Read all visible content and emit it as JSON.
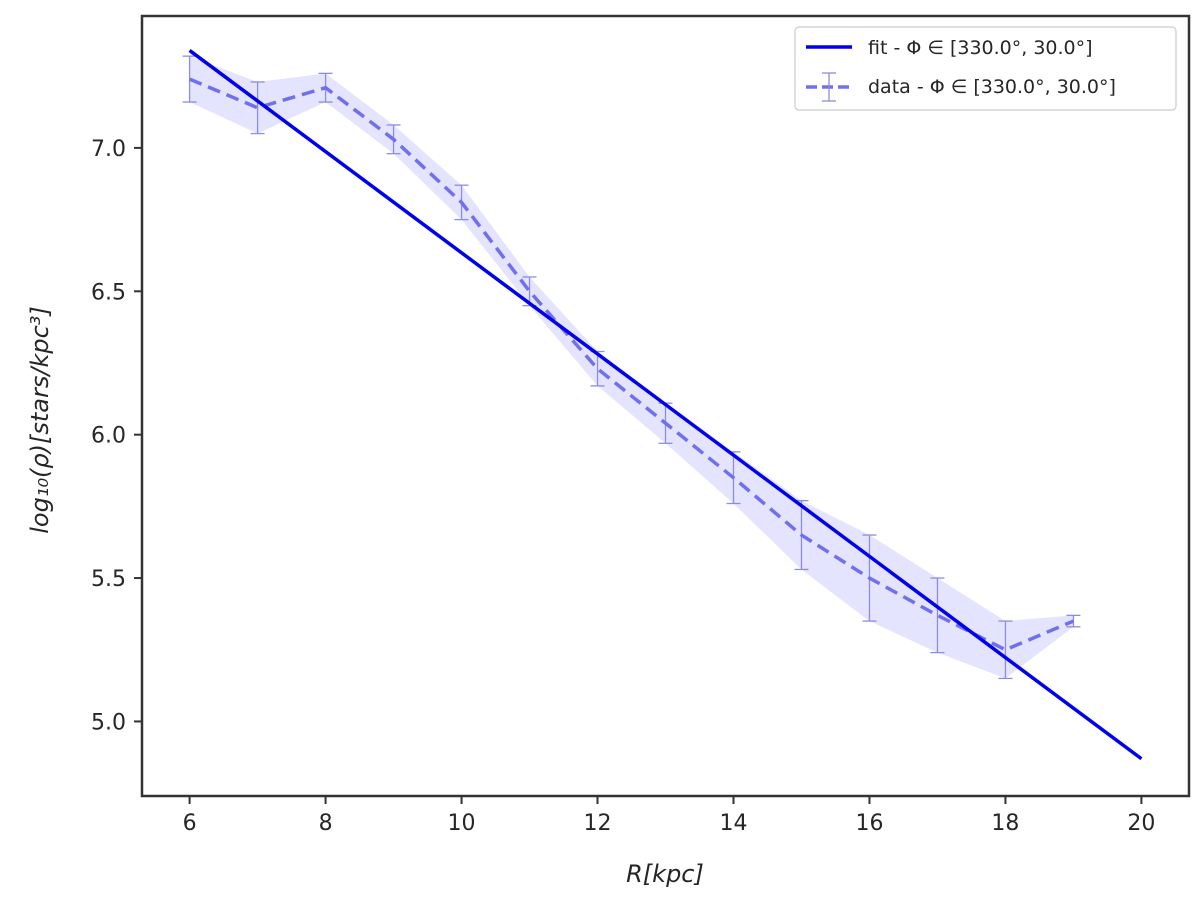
{
  "chart_data": {
    "type": "line",
    "xlabel": "R[kpc]",
    "ylabel": "log₁₀(ρ)[stars/kpc³]",
    "xlim": [
      5.3,
      20.7
    ],
    "ylim": [
      4.74,
      7.46
    ],
    "xticks": [
      6,
      8,
      10,
      12,
      14,
      16,
      18,
      20
    ],
    "xtick_labels": [
      "6",
      "8",
      "10",
      "12",
      "14",
      "16",
      "18",
      "20"
    ],
    "yticks": [
      5.0,
      5.5,
      6.0,
      6.5,
      7.0
    ],
    "ytick_labels": [
      "5.0",
      "5.5",
      "6.0",
      "6.5",
      "7.0"
    ],
    "grid": false,
    "legend_position": "top-right",
    "series": [
      {
        "name": "fit - Φ ∈ [330.0°, 30.0°]",
        "style": "solid",
        "color": "#0000ee",
        "x": [
          6,
          20
        ],
        "y": [
          7.34,
          4.87
        ]
      },
      {
        "name": "data - Φ ∈ [330.0°, 30.0°]",
        "style": "dashed",
        "color": "#7070ee",
        "band_color": "#e4e4ff",
        "errorbar_color": "#8c8ce0",
        "x": [
          6,
          7,
          8,
          9,
          10,
          11,
          12,
          13,
          14,
          15,
          16,
          17,
          18,
          19
        ],
        "y": [
          7.24,
          7.14,
          7.21,
          7.03,
          6.81,
          6.5,
          6.23,
          6.04,
          5.85,
          5.65,
          5.5,
          5.37,
          5.25,
          5.35
        ],
        "yerr": [
          0.08,
          0.09,
          0.05,
          0.05,
          0.06,
          0.05,
          0.06,
          0.07,
          0.09,
          0.12,
          0.15,
          0.13,
          0.1,
          0.02
        ]
      }
    ]
  }
}
